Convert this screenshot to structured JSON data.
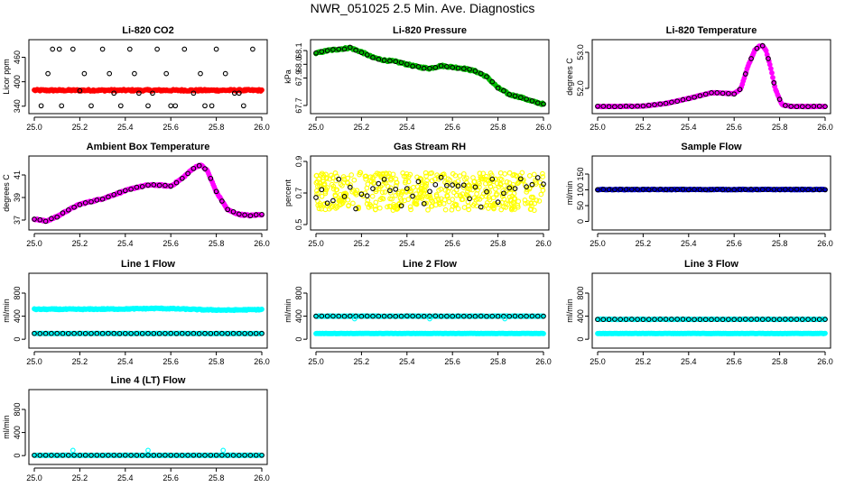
{
  "figure_title": "NWR_051025  2.5 Min. Ave. Diagnostics",
  "colors": {
    "black": "#000000",
    "red": "#ff0000",
    "green": "#00bb00",
    "magenta": "#ff00ff",
    "yellow": "#ffff00",
    "blue": "#0000cc",
    "cyan": "#00ffff"
  },
  "chart_data": [
    {
      "type": "scatter",
      "title": "Li-820 CO2",
      "ylabel": "Licor ppm",
      "xlim": [
        25.0,
        26.0
      ],
      "ylim": [
        335,
        490
      ],
      "xticks": [
        "25.0",
        "25.2",
        "25.4",
        "25.6",
        "25.8",
        "26.0"
      ],
      "yticks": [
        {
          "v": 340,
          "l": "340"
        },
        {
          "v": 400,
          "l": "400"
        },
        {
          "v": 460,
          "l": "460"
        }
      ],
      "series": [
        {
          "name": "dense",
          "color": "#ff0000",
          "marker": "filled",
          "x": [
            25.0,
            26.0
          ],
          "y": [
            379,
            379
          ],
          "noise": 2
        },
        {
          "name": "points",
          "color": "#000000",
          "marker": "open",
          "x": [
            25.03,
            25.08,
            25.12,
            25.17,
            25.2,
            25.25,
            25.3,
            25.33,
            25.38,
            25.42,
            25.46,
            25.5,
            25.54,
            25.58,
            25.62,
            25.66,
            25.7,
            25.75,
            25.8,
            25.84,
            25.88,
            25.92,
            25.96,
            25.06,
            25.22,
            25.35,
            25.52,
            25.73,
            25.9,
            25.11,
            25.44,
            25.6,
            25.78
          ],
          "y": [
            341,
            480,
            341,
            480,
            378,
            341,
            480,
            420,
            341,
            480,
            372,
            341,
            480,
            420,
            341,
            480,
            372,
            341,
            480,
            420,
            372,
            341,
            480,
            420,
            420,
            372,
            372,
            420,
            372,
            480,
            420,
            341,
            341
          ]
        }
      ]
    },
    {
      "type": "scatter",
      "title": "Li-820 Pressure",
      "ylabel": "kPa",
      "xlim": [
        25.0,
        26.0
      ],
      "ylim": [
        67.68,
        68.14
      ],
      "xticks": [
        "25.0",
        "25.2",
        "25.4",
        "25.6",
        "25.8",
        "26.0"
      ],
      "yticks": [
        {
          "v": 67.7,
          "l": "67.7"
        },
        {
          "v": 67.9,
          "l": "67.9"
        },
        {
          "v": 68.0,
          "l": "68.0"
        },
        {
          "v": 68.1,
          "l": "68.1"
        }
      ],
      "series": [
        {
          "name": "dense",
          "color": "#00bb00",
          "marker": "filled",
          "x": [
            25.0,
            25.05,
            25.1,
            25.15,
            25.2,
            25.25,
            25.3,
            25.35,
            25.4,
            25.45,
            25.5,
            25.55,
            25.6,
            25.65,
            25.7,
            25.75,
            25.8,
            25.85,
            25.9,
            25.95,
            26.0
          ],
          "y": [
            68.08,
            68.1,
            68.11,
            68.12,
            68.09,
            68.05,
            68.03,
            68.02,
            68.0,
            67.98,
            67.97,
            67.99,
            67.98,
            67.97,
            67.95,
            67.91,
            67.83,
            67.78,
            67.76,
            67.73,
            67.71
          ],
          "noise": 0.006
        },
        {
          "name": "points",
          "color": "#000000",
          "marker": "open",
          "x": [
            25.0,
            25.05,
            25.1,
            25.15,
            25.2,
            25.25,
            25.3,
            25.35,
            25.4,
            25.45,
            25.5,
            25.55,
            25.6,
            25.65,
            25.7,
            25.75,
            25.8,
            25.85,
            25.9,
            25.95,
            26.0
          ],
          "y": [
            68.08,
            68.1,
            68.11,
            68.12,
            68.09,
            68.05,
            68.03,
            68.02,
            68.0,
            67.98,
            67.97,
            67.99,
            67.98,
            67.97,
            67.95,
            67.91,
            67.83,
            67.78,
            67.76,
            67.73,
            67.71
          ],
          "step": 0.025,
          "noise": 0.004
        }
      ]
    },
    {
      "type": "scatter",
      "title": "Li-820 Temperature",
      "ylabel": "degrees C",
      "xlim": [
        25.0,
        26.0
      ],
      "ylim": [
        51.45,
        53.2
      ],
      "xticks": [
        "25.0",
        "25.2",
        "25.4",
        "25.6",
        "25.8",
        "26.0"
      ],
      "yticks": [
        {
          "v": 52.0,
          "l": "52.0"
        },
        {
          "v": 53.0,
          "l": "53.0"
        }
      ],
      "series": [
        {
          "name": "dense",
          "color": "#ff00ff",
          "marker": "filled",
          "x": [
            25.0,
            25.1,
            25.2,
            25.3,
            25.4,
            25.45,
            25.5,
            25.55,
            25.6,
            25.63,
            25.66,
            25.69,
            25.72,
            25.74,
            25.76,
            25.78,
            25.81,
            25.85,
            25.9,
            26.0
          ],
          "y": [
            51.5,
            51.5,
            51.51,
            51.58,
            51.72,
            51.8,
            51.88,
            51.87,
            51.85,
            52.0,
            52.6,
            53.05,
            53.22,
            53.05,
            52.6,
            52.0,
            51.55,
            51.5,
            51.5,
            51.5
          ],
          "noise": 0.008
        },
        {
          "name": "points",
          "color": "#000000",
          "marker": "open",
          "x": [
            25.0,
            25.1,
            25.2,
            25.3,
            25.4,
            25.45,
            25.5,
            25.55,
            25.6,
            25.63,
            25.66,
            25.69,
            25.72,
            25.74,
            25.76,
            25.78,
            25.81,
            25.85,
            25.9,
            26.0
          ],
          "y": [
            51.5,
            51.5,
            51.51,
            51.58,
            51.72,
            51.8,
            51.88,
            51.87,
            51.85,
            52.0,
            52.6,
            53.05,
            53.22,
            53.05,
            52.6,
            52.0,
            51.55,
            51.5,
            51.5,
            51.5
          ],
          "step": 0.025,
          "noise": 0.006
        }
      ]
    },
    {
      "type": "scatter",
      "title": "Ambient Box Temperature",
      "ylabel": "degrees C",
      "xlim": [
        25.0,
        26.0
      ],
      "ylim": [
        36.6,
        42.2
      ],
      "xticks": [
        "25.0",
        "25.2",
        "25.4",
        "25.6",
        "25.8",
        "26.0"
      ],
      "yticks": [
        {
          "v": 37,
          "l": "37"
        },
        {
          "v": 39,
          "l": "39"
        },
        {
          "v": 41,
          "l": "41"
        }
      ],
      "series": [
        {
          "name": "dense",
          "color": "#ff00ff",
          "marker": "filled",
          "x": [
            25.0,
            25.05,
            25.1,
            25.15,
            25.2,
            25.3,
            25.4,
            25.45,
            25.5,
            25.55,
            25.6,
            25.65,
            25.7,
            25.73,
            25.76,
            25.8,
            25.85,
            25.9,
            25.95,
            26.0
          ],
          "y": [
            37.1,
            36.9,
            37.3,
            37.9,
            38.4,
            38.9,
            39.6,
            39.9,
            40.1,
            40.1,
            40.0,
            40.7,
            41.6,
            41.9,
            41.4,
            39.5,
            37.9,
            37.5,
            37.4,
            37.5
          ],
          "noise": 0.05
        },
        {
          "name": "points",
          "color": "#000000",
          "marker": "open",
          "x": [
            25.0,
            25.05,
            25.1,
            25.15,
            25.2,
            25.3,
            25.4,
            25.45,
            25.5,
            25.55,
            25.6,
            25.65,
            25.7,
            25.73,
            25.76,
            25.8,
            25.85,
            25.9,
            25.95,
            26.0
          ],
          "y": [
            37.1,
            36.9,
            37.3,
            37.9,
            38.4,
            38.9,
            39.6,
            39.9,
            40.1,
            40.1,
            40.0,
            40.7,
            41.6,
            41.9,
            41.4,
            39.5,
            37.9,
            37.5,
            37.4,
            37.5
          ],
          "step": 0.025,
          "noise": 0.04
        }
      ]
    },
    {
      "type": "scatter",
      "title": "Gas Stream RH",
      "ylabel": "percent",
      "xlim": [
        25.0,
        26.0
      ],
      "ylim": [
        0.5,
        0.9
      ],
      "xticks": [
        "25.0",
        "25.2",
        "25.4",
        "25.6",
        "25.8",
        "26.0"
      ],
      "yticks": [
        {
          "v": 0.5,
          "l": "0.5"
        },
        {
          "v": 0.7,
          "l": "0.7"
        },
        {
          "v": 0.9,
          "l": "0.9"
        }
      ],
      "series": [
        {
          "name": "dense",
          "color": "#ffff00",
          "marker": "open",
          "x": [
            25.0,
            26.0
          ],
          "y": [
            0.71,
            0.71
          ],
          "noise": 0.12,
          "count": 500
        },
        {
          "name": "points",
          "color": "#000000",
          "marker": "open",
          "x": [
            25.0,
            26.0
          ],
          "y": [
            0.7,
            0.7
          ],
          "step": 0.025,
          "noise": 0.1
        }
      ]
    },
    {
      "type": "scatter",
      "title": "Sample Flow",
      "ylabel": "ml/min",
      "xlim": [
        25.0,
        26.0
      ],
      "ylim": [
        -10,
        190
      ],
      "xticks": [
        "25.0",
        "25.2",
        "25.4",
        "25.6",
        "25.8",
        "26.0"
      ],
      "yticks": [
        {
          "v": 0,
          "l": "0"
        },
        {
          "v": 50,
          "l": "50"
        },
        {
          "v": 100,
          "l": "100"
        },
        {
          "v": 150,
          "l": "150"
        }
      ],
      "series": [
        {
          "name": "dense",
          "color": "#0000cc",
          "marker": "filled",
          "x": [
            25.0,
            26.0
          ],
          "y": [
            101,
            101
          ],
          "noise": 1
        },
        {
          "name": "points",
          "color": "#000000",
          "marker": "open",
          "x": [
            25.0,
            26.0
          ],
          "y": [
            101,
            101
          ],
          "step": 0.025,
          "noise": 0.8
        }
      ]
    },
    {
      "type": "scatter",
      "title": "Line 1 Flow",
      "ylabel": "ml/min",
      "xlim": [
        25.0,
        26.0
      ],
      "ylim": [
        -60,
        1050
      ],
      "xticks": [
        "25.0",
        "25.2",
        "25.4",
        "25.6",
        "25.8",
        "26.0"
      ],
      "yticks": [
        {
          "v": 0,
          "l": "0"
        },
        {
          "v": 400,
          "l": "400"
        },
        {
          "v": 800,
          "l": "800"
        }
      ],
      "series": [
        {
          "name": "high",
          "color": "#00ffff",
          "marker": "filled",
          "x": [
            25.0,
            25.2,
            25.4,
            25.55,
            25.65,
            25.75,
            25.85,
            26.0
          ],
          "y": [
            520,
            520,
            525,
            535,
            525,
            510,
            505,
            515
          ],
          "noise": 8
        },
        {
          "name": "low",
          "color": "#00ffff",
          "marker": "filled",
          "x": [
            25.0,
            26.0
          ],
          "y": [
            100,
            100
          ],
          "noise": 3
        },
        {
          "name": "points",
          "color": "#000000",
          "marker": "open",
          "x": [
            25.0,
            26.0
          ],
          "y": [
            100,
            100
          ],
          "step": 0.025,
          "noise": 2
        }
      ]
    },
    {
      "type": "scatter",
      "title": "Line 2 Flow",
      "ylabel": "ml/min",
      "xlim": [
        25.0,
        26.0
      ],
      "ylim": [
        -60,
        1050
      ],
      "xticks": [
        "25.0",
        "25.2",
        "25.4",
        "25.6",
        "25.8",
        "26.0"
      ],
      "yticks": [
        {
          "v": 0,
          "l": "0"
        },
        {
          "v": 400,
          "l": "400"
        },
        {
          "v": 800,
          "l": "800"
        }
      ],
      "series": [
        {
          "name": "high",
          "color": "#00ffff",
          "marker": "filled",
          "x": [
            25.0,
            26.0
          ],
          "y": [
            400,
            400
          ],
          "noise": 4
        },
        {
          "name": "low",
          "color": "#00ffff",
          "marker": "filled",
          "x": [
            25.0,
            26.0
          ],
          "y": [
            100,
            100
          ],
          "noise": 3
        },
        {
          "name": "points",
          "color": "#000000",
          "marker": "open",
          "x": [
            25.0,
            26.0
          ],
          "y": [
            400,
            400
          ],
          "step": 0.025,
          "noise": 2
        },
        {
          "name": "outliers",
          "color": "#00ffff",
          "marker": "open",
          "x": [
            25.17,
            25.5,
            25.83
          ],
          "y": [
            355,
            355,
            355
          ]
        }
      ]
    },
    {
      "type": "scatter",
      "title": "Line 3 Flow",
      "ylabel": "ml/min",
      "xlim": [
        25.0,
        26.0
      ],
      "ylim": [
        -60,
        1050
      ],
      "xticks": [
        "25.0",
        "25.2",
        "25.4",
        "25.6",
        "25.8",
        "26.0"
      ],
      "yticks": [
        {
          "v": 0,
          "l": "0"
        },
        {
          "v": 400,
          "l": "400"
        },
        {
          "v": 800,
          "l": "800"
        }
      ],
      "series": [
        {
          "name": "high",
          "color": "#00ffff",
          "marker": "filled",
          "x": [
            25.0,
            26.0
          ],
          "y": [
            345,
            345
          ],
          "noise": 4
        },
        {
          "name": "low",
          "color": "#00ffff",
          "marker": "filled",
          "x": [
            25.0,
            26.0
          ],
          "y": [
            100,
            100
          ],
          "noise": 3
        },
        {
          "name": "points",
          "color": "#000000",
          "marker": "open",
          "x": [
            25.0,
            26.0
          ],
          "y": [
            345,
            345
          ],
          "step": 0.025,
          "noise": 2
        }
      ]
    },
    {
      "type": "scatter",
      "title": "Line 4 (LT) Flow",
      "ylabel": "ml/min",
      "xlim": [
        25.0,
        26.0
      ],
      "ylim": [
        -60,
        1050
      ],
      "xticks": [
        "25.0",
        "25.2",
        "25.4",
        "25.6",
        "25.8",
        "26.0"
      ],
      "yticks": [
        {
          "v": 0,
          "l": "0"
        },
        {
          "v": 400,
          "l": "400"
        },
        {
          "v": 800,
          "l": "800"
        }
      ],
      "series": [
        {
          "name": "low",
          "color": "#00ffff",
          "marker": "filled",
          "x": [
            25.0,
            26.0
          ],
          "y": [
            5,
            5
          ],
          "noise": 2
        },
        {
          "name": "points",
          "color": "#000000",
          "marker": "open",
          "x": [
            25.0,
            26.0
          ],
          "y": [
            5,
            5
          ],
          "step": 0.025,
          "noise": 1
        },
        {
          "name": "outliers",
          "color": "#00ffff",
          "marker": "open",
          "x": [
            25.17,
            25.5,
            25.83
          ],
          "y": [
            90,
            90,
            90
          ]
        }
      ]
    }
  ]
}
